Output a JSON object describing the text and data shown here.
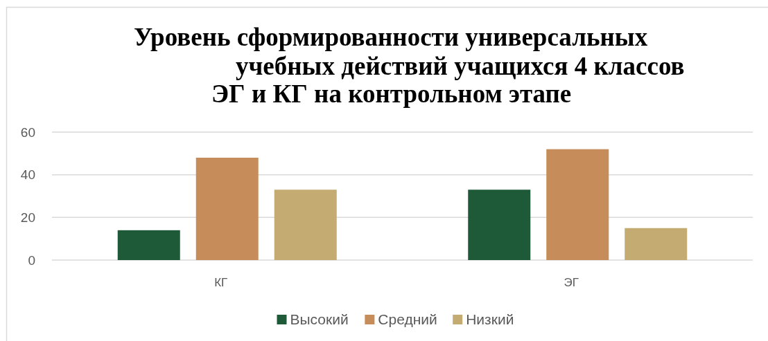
{
  "chart_data": {
    "type": "bar",
    "title": "Уровень сформированности универсальных\nучебных действий учащихся 4 классов\nЭГ и КГ на контрольном этапе",
    "categories": [
      "КГ",
      "ЭГ"
    ],
    "series": [
      {
        "name": "Высокий",
        "color": "#1f5a38",
        "values": [
          14,
          33
        ]
      },
      {
        "name": "Средний",
        "color": "#c68d5a",
        "values": [
          48,
          52
        ]
      },
      {
        "name": "Низкий",
        "color": "#c4ab72",
        "values": [
          33,
          15
        ]
      }
    ],
    "ylim": [
      0,
      60
    ],
    "yticks": [
      0,
      20,
      40,
      60
    ],
    "grid": "y",
    "legend": "bottom"
  }
}
